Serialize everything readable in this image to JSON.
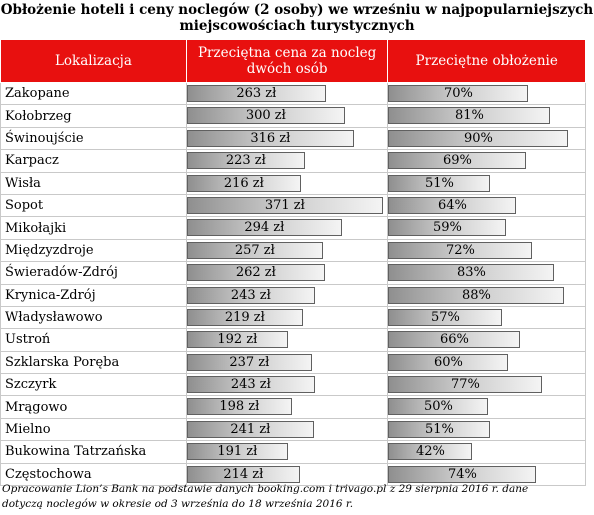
{
  "title_line1": "Obłożenie hoteli i ceny noclegów (2 osoby) we wrześniu w najpopularniejszych",
  "title_line2": "miejscowościach turystycznych",
  "headers": {
    "location": "Lokalizacja",
    "price_line1": "Przeciętna cena za nocleg",
    "price_line2": "dwóch osób",
    "occupancy": "Przeciętne obłożenie"
  },
  "footer_line1": "Opracowanie Lion’s Bank na podstawie danych booking.com i trivago.pl z 29 sierpnia 2016 r. dane",
  "footer_line2": "dotyczą noclegów w okresie od 3 września do 18 września 2016 r.",
  "colors": {
    "header": "#e8100f"
  },
  "chart_data": {
    "type": "table",
    "columns": [
      "Lokalizacja",
      "Przeciętna cena za nocleg dwóch osób",
      "Przeciętne obłożenie"
    ],
    "rows": [
      {
        "location": "Zakopane",
        "price": 263,
        "price_label": "263 zł",
        "occupancy": 70,
        "occupancy_label": "70%"
      },
      {
        "location": "Kołobrzeg",
        "price": 300,
        "price_label": "300 zł",
        "occupancy": 81,
        "occupancy_label": "81%"
      },
      {
        "location": "Świnoujście",
        "price": 316,
        "price_label": "316 zł",
        "occupancy": 90,
        "occupancy_label": "90%"
      },
      {
        "location": "Karpacz",
        "price": 223,
        "price_label": "223 zł",
        "occupancy": 69,
        "occupancy_label": "69%"
      },
      {
        "location": "Wisła",
        "price": 216,
        "price_label": "216 zł",
        "occupancy": 51,
        "occupancy_label": "51%"
      },
      {
        "location": "Sopot",
        "price": 371,
        "price_label": "371 zł",
        "occupancy": 64,
        "occupancy_label": "64%"
      },
      {
        "location": "Mikołajki",
        "price": 294,
        "price_label": "294 zł",
        "occupancy": 59,
        "occupancy_label": "59%"
      },
      {
        "location": "Międzyzdroje",
        "price": 257,
        "price_label": "257 zł",
        "occupancy": 72,
        "occupancy_label": "72%"
      },
      {
        "location": "Świeradów-Zdrój",
        "price": 262,
        "price_label": "262 zł",
        "occupancy": 83,
        "occupancy_label": "83%"
      },
      {
        "location": "Krynica-Zdrój",
        "price": 243,
        "price_label": "243 zł",
        "occupancy": 88,
        "occupancy_label": "88%"
      },
      {
        "location": "Władysławowo",
        "price": 219,
        "price_label": "219 zł",
        "occupancy": 57,
        "occupancy_label": "57%"
      },
      {
        "location": "Ustroń",
        "price": 192,
        "price_label": "192 zł",
        "occupancy": 66,
        "occupancy_label": "66%"
      },
      {
        "location": "Szklarska Poręba",
        "price": 237,
        "price_label": "237 zł",
        "occupancy": 60,
        "occupancy_label": "60%"
      },
      {
        "location": "Szczyrk",
        "price": 243,
        "price_label": "243 zł",
        "occupancy": 77,
        "occupancy_label": "77%"
      },
      {
        "location": "Mrągowo",
        "price": 198,
        "price_label": "198 zł",
        "occupancy": 50,
        "occupancy_label": "50%"
      },
      {
        "location": "Mielno",
        "price": 241,
        "price_label": "241 zł",
        "occupancy": 51,
        "occupancy_label": "51%"
      },
      {
        "location": "Bukowina Tatrzańska",
        "price": 191,
        "price_label": "191 zł",
        "occupancy": 42,
        "occupancy_label": "42%"
      },
      {
        "location": "Częstochowa",
        "price": 214,
        "price_label": "214 zł",
        "occupancy": 74,
        "occupancy_label": "74%"
      }
    ],
    "price_max": 371,
    "occupancy_max": 90
  }
}
